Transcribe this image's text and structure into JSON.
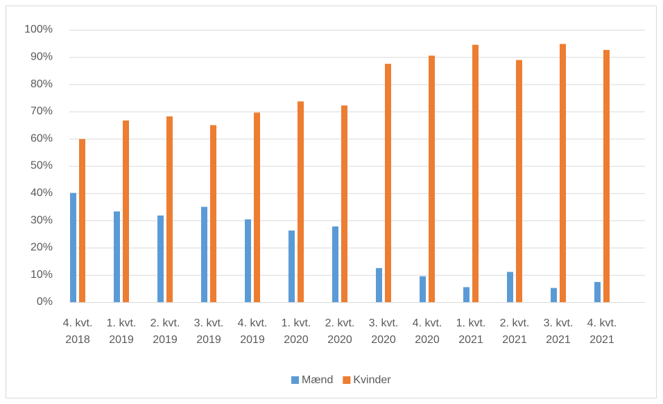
{
  "chart_data": {
    "type": "bar",
    "categories": [
      "4. kvt. 2018",
      "1. kvt. 2019",
      "2. kvt. 2019",
      "3. kvt. 2019",
      "4. kvt. 2019",
      "1. kvt. 2020",
      "2. kvt. 2020",
      "3. kvt. 2020",
      "4. kvt. 2020",
      "1. kvt. 2021",
      "2. kvt. 2021",
      "3. kvt. 2021",
      "4. kvt. 2021"
    ],
    "series": [
      {
        "name": "Mænd",
        "color": "#5b9bd5",
        "values": [
          40.1,
          33.3,
          31.8,
          35,
          30.4,
          26.3,
          27.8,
          12.5,
          9.5,
          5.5,
          11.1,
          5.2,
          7.4
        ]
      },
      {
        "name": "Kvinder",
        "color": "#ed7d31",
        "values": [
          59.9,
          66.7,
          68.2,
          65,
          69.6,
          73.7,
          72.2,
          87.5,
          90.5,
          94.5,
          88.9,
          94.8,
          92.6
        ]
      }
    ],
    "ylim": [
      0,
      100
    ],
    "yticks": [
      {
        "value": 0,
        "label": "0%"
      },
      {
        "value": 10,
        "label": "10%"
      },
      {
        "value": 20,
        "label": "20%"
      },
      {
        "value": 30,
        "label": "30%"
      },
      {
        "value": 40,
        "label": "40%"
      },
      {
        "value": 50,
        "label": "50%"
      },
      {
        "value": 60,
        "label": "60%"
      },
      {
        "value": 70,
        "label": "70%"
      },
      {
        "value": 80,
        "label": "80%"
      },
      {
        "value": 90,
        "label": "90%"
      },
      {
        "value": 100,
        "label": "100%"
      }
    ],
    "grid": true,
    "legend": "bottom"
  }
}
